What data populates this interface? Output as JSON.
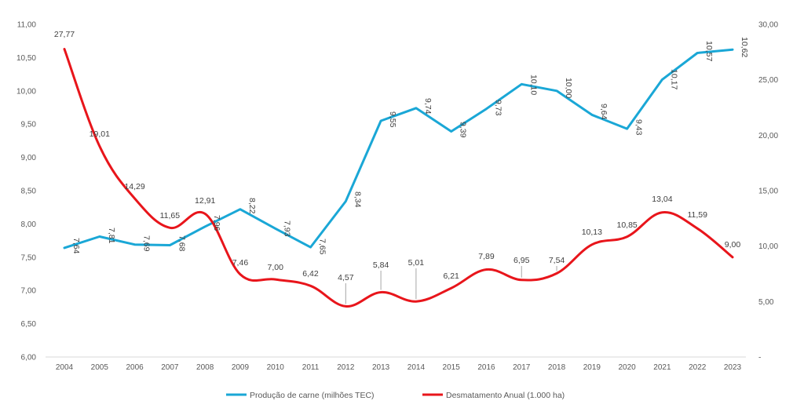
{
  "chart_data": {
    "type": "line",
    "title": "",
    "x": [
      "2004",
      "2005",
      "2006",
      "2007",
      "2008",
      "2009",
      "2010",
      "2011",
      "2012",
      "2013",
      "2014",
      "2015",
      "2016",
      "2017",
      "2018",
      "2019",
      "2020",
      "2021",
      "2022",
      "2023"
    ],
    "y_left": {
      "min": 6.0,
      "max": 11.0,
      "step": 0.5,
      "tick_labels": [
        "6,00",
        "6,50",
        "7,00",
        "7,50",
        "8,00",
        "8,50",
        "9,00",
        "9,50",
        "10,00",
        "10,50",
        "11,00"
      ]
    },
    "y_right": {
      "min": 0,
      "max": 30,
      "step": 5,
      "tick_labels": [
        "-",
        "5,00",
        "10,00",
        "15,00",
        "20,00",
        "25,00",
        "30,00"
      ]
    },
    "grid": false,
    "legend_position": "bottom",
    "series": [
      {
        "name": "Produção de carne (milhões TEC)",
        "axis": "left",
        "color": "#1aa7d6",
        "values": [
          7.64,
          7.81,
          7.69,
          7.68,
          7.96,
          8.22,
          7.93,
          7.65,
          8.34,
          9.55,
          9.74,
          9.39,
          9.73,
          10.1,
          10.0,
          9.64,
          9.43,
          10.17,
          10.57,
          10.62
        ],
        "labels": [
          "7,64",
          "7,81",
          "7,69",
          "7,68",
          "7,96",
          "8,22",
          "7,93",
          "7,65",
          "8,34",
          "9,55",
          "9,74",
          "9,39",
          "9,73",
          "10,10",
          "10,00",
          "9,64",
          "9,43",
          "10,17",
          "10,57",
          "10,62"
        ]
      },
      {
        "name": "Desmatamento Anual (1.000 ha)",
        "axis": "right",
        "color": "#e8151b",
        "values": [
          27.77,
          19.01,
          14.29,
          11.65,
          12.91,
          7.46,
          7.0,
          6.42,
          4.57,
          5.84,
          5.01,
          6.21,
          7.89,
          6.95,
          7.54,
          10.13,
          10.85,
          13.04,
          11.59,
          9.0
        ],
        "labels": [
          "27,77",
          "19,01",
          "14,29",
          "11,65",
          "12,91",
          "7,46",
          "7,00",
          "6,42",
          "4,57",
          "5,84",
          "5,01",
          "6,21",
          "7,89",
          "6,95",
          "7,54",
          "10,13",
          "10,85",
          "13,04",
          "11,59",
          "9,00"
        ]
      }
    ]
  }
}
